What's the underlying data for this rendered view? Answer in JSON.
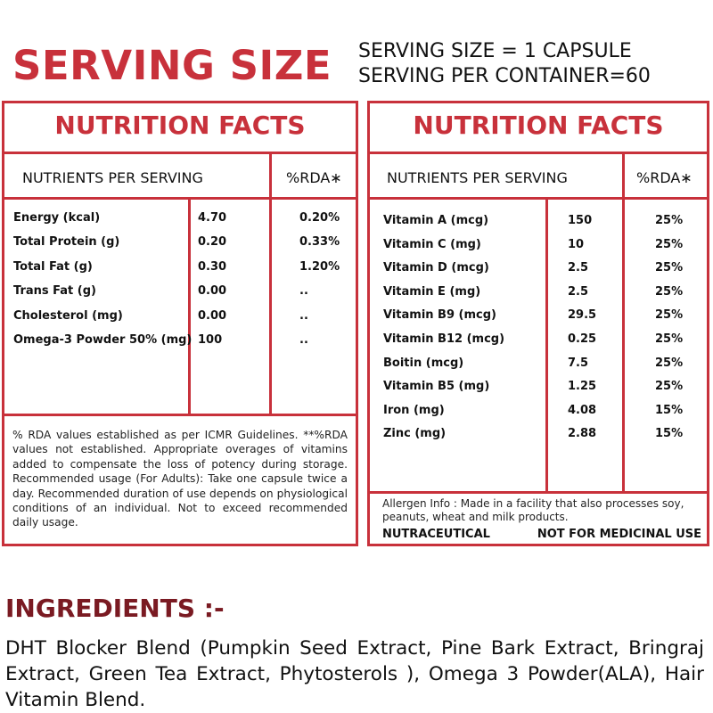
{
  "header": {
    "title": "SERVING SIZE",
    "serving_size": "SERVING SIZE = 1 CAPSULE",
    "serving_per_container": "SERVING PER CONTAINER=60"
  },
  "left_panel": {
    "title": "NUTRITION FACTS",
    "col_nutrients": "NUTRIENTS PER SERVING",
    "col_rda": "%RDA∗",
    "rows": [
      {
        "name": "Energy (kcal)",
        "value": "4.70",
        "rda": "0.20%"
      },
      {
        "name": "Total Protein (g)",
        "value": "0.20",
        "rda": "0.33%"
      },
      {
        "name": "Total Fat (g)",
        "value": "0.30",
        "rda": "1.20%"
      },
      {
        "name": "Trans Fat (g)",
        "value": "0.00",
        "rda": ".."
      },
      {
        "name": "Cholesterol (mg)",
        "value": "0.00",
        "rda": ".."
      },
      {
        "name": "Omega-3 Powder 50% (mg)",
        "value": "100",
        "rda": ".."
      }
    ],
    "footnote": "% RDA values established as per ICMR Guidelines. **%RDA values not established. Appropriate overages of vitamins added to compensate the loss of potency during storage. Recommended usage (For Adults): Take one capsule twice a day. Recommended duration of use depends on physiological conditions of an individual. Not to exceed recommended daily usage."
  },
  "right_panel": {
    "title": "NUTRITION FACTS",
    "col_nutrients": "NUTRIENTS PER SERVING",
    "col_rda": "%RDA∗",
    "rows": [
      {
        "name": "Vitamin A (mcg)",
        "value": "150",
        "rda": "25%"
      },
      {
        "name": "Vitamin C (mg)",
        "value": "10",
        "rda": "25%"
      },
      {
        "name": "Vitamin D (mcg)",
        "value": "2.5",
        "rda": "25%"
      },
      {
        "name": "Vitamin E (mg)",
        "value": "2.5",
        "rda": "25%"
      },
      {
        "name": "Vitamin B9 (mcg)",
        "value": "29.5",
        "rda": "25%"
      },
      {
        "name": "Vitamin B12 (mcg)",
        "value": "0.25",
        "rda": "25%"
      },
      {
        "name": "Boitin (mcg)",
        "value": "7.5",
        "rda": "25%"
      },
      {
        "name": "Vitamin B5 (mg)",
        "value": "1.25",
        "rda": "25%"
      },
      {
        "name": "Iron (mg)",
        "value": "4.08",
        "rda": "15%"
      },
      {
        "name": "Zinc (mg)",
        "value": "2.88",
        "rda": "15%"
      }
    ],
    "allergen": "Allergen Info : Made in a facility that also processes soy, peanuts, wheat and milk products.",
    "tag_left": "NUTRACEUTICAL",
    "tag_right": "NOT FOR MEDICINAL USE"
  },
  "ingredients": {
    "title": "INGREDIENTS :-",
    "text": "DHT Blocker Blend (Pumpkin Seed Extract, Pine Bark Extract, Bringraj Extract, Green Tea Extract, Phytosterols ), Omega 3 Powder(ALA), Hair Vitamin Blend."
  },
  "colors": {
    "accent": "#c8313b",
    "ingredients_title": "#7a1a22"
  }
}
